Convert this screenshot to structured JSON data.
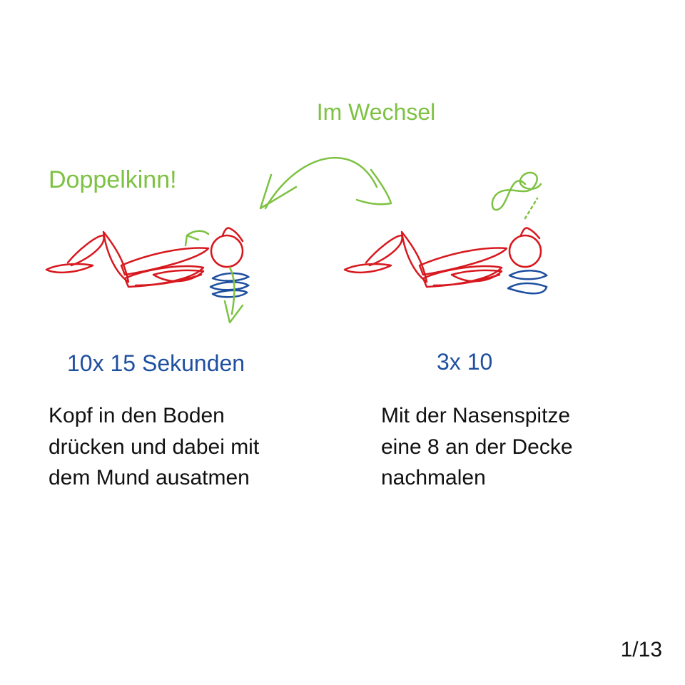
{
  "header": {
    "title": "Im Wechsel"
  },
  "exercises": [
    {
      "label": "Doppelkinn!",
      "dose": "10x 15 Sekunden",
      "lines": [
        "Kopf in den Boden",
        "drücken und dabei mit",
        "dem Mund ausatmen"
      ]
    },
    {
      "dose": "3x 10",
      "lines": [
        "Mit der Nasenspitze",
        "eine 8 an der Decke",
        "nachmalen"
      ]
    }
  ],
  "footer": {
    "page": "1/13"
  }
}
